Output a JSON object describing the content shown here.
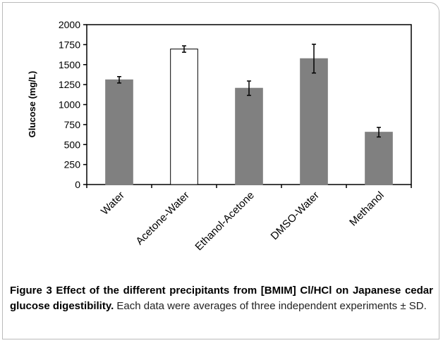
{
  "chart_data": {
    "type": "bar",
    "ylabel": "Glucose (mg/L)",
    "categories": [
      "Water",
      "Acetone-Water",
      "Ethanol-Acetone",
      "DMSO-Water",
      "Methanol"
    ],
    "values": [
      1310,
      1695,
      1205,
      1575,
      655
    ],
    "errors": [
      40,
      40,
      90,
      180,
      60
    ],
    "colors": [
      "#808080",
      "#ffffff",
      "#808080",
      "#808080",
      "#808080"
    ],
    "ylim": [
      0,
      2000
    ],
    "yticks": [
      0,
      250,
      500,
      750,
      1000,
      1250,
      1500,
      1750,
      2000
    ]
  },
  "caption_title": "Figure 3 Effect of the different precipitants from [BMIM] Cl/HCl on Japanese cedar glucose digestibility.",
  "caption_text": "Each data were averages of three independent experiments ± SD."
}
